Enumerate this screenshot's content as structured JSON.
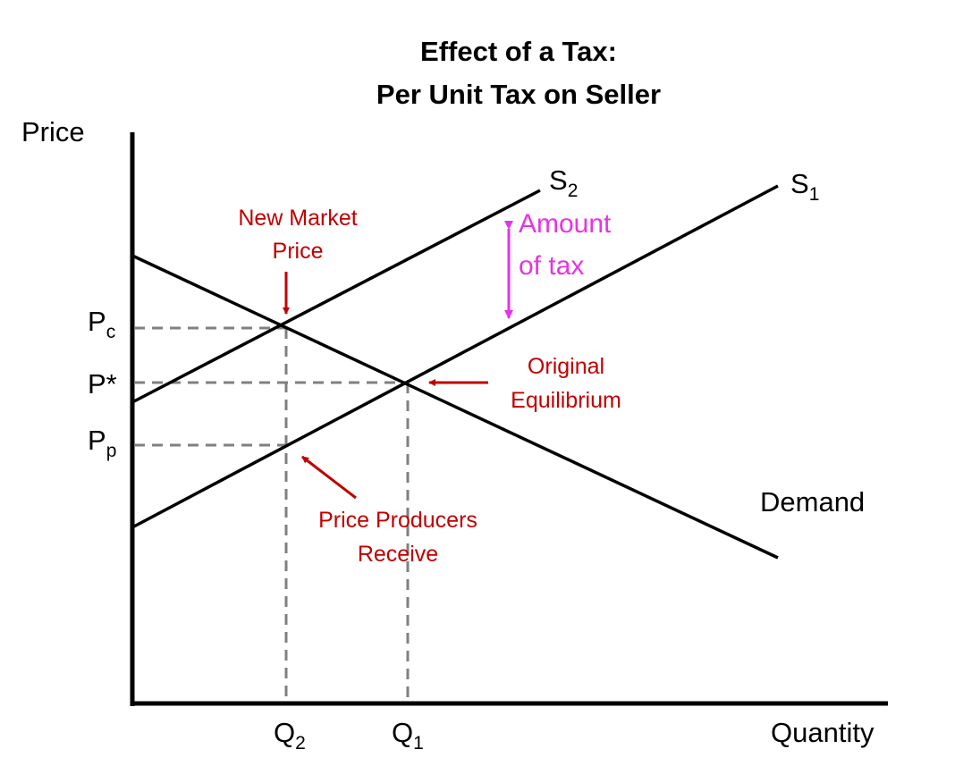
{
  "title": {
    "line1": "Effect of a Tax:",
    "line2": "Per Unit Tax on Seller"
  },
  "axes": {
    "y_label": "Price",
    "x_label": "Quantity"
  },
  "curves": {
    "s1": {
      "main": "S",
      "sub": "1"
    },
    "s2": {
      "main": "S",
      "sub": "2"
    },
    "demand": "Demand"
  },
  "price_ticks": {
    "pc": {
      "main": "P",
      "sub": "c"
    },
    "pstar": "P*",
    "pp": {
      "main": "P",
      "sub": "p"
    }
  },
  "quantity_ticks": {
    "q2": {
      "main": "Q",
      "sub": "2"
    },
    "q1": {
      "main": "Q",
      "sub": "1"
    }
  },
  "annotations": {
    "new_market_price": [
      "New Market",
      "Price"
    ],
    "amount_of_tax": [
      "Amount",
      "of tax"
    ],
    "original_equilibrium": [
      "Original",
      "Equilibrium"
    ],
    "price_producers_receive": [
      "Price Producers",
      "Receive"
    ]
  },
  "colors": {
    "curve": "#000000",
    "guide": "#808080",
    "annotation": "#c00000",
    "tax": "#e633e6"
  }
}
